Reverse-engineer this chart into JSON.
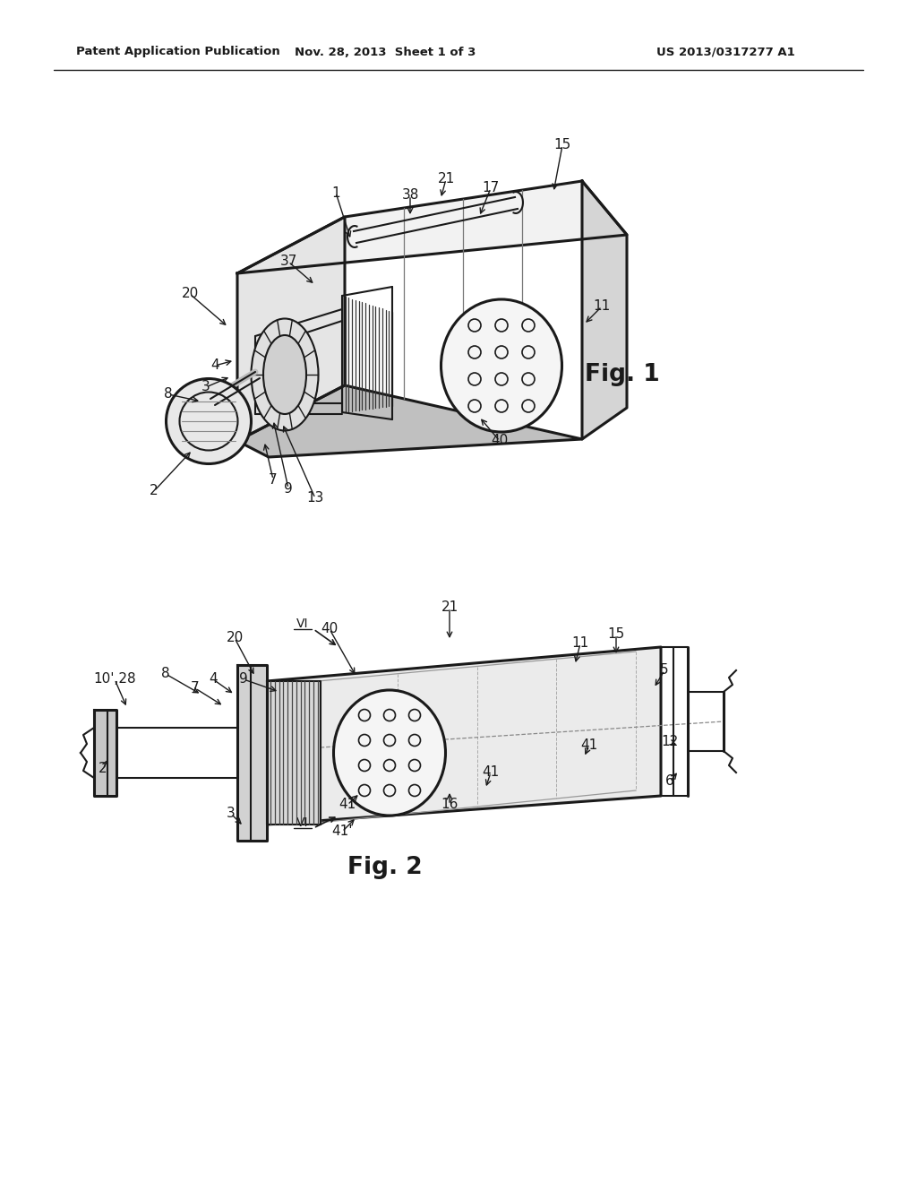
{
  "background_color": "#ffffff",
  "header_left": "Patent Application Publication",
  "header_center": "Nov. 28, 2013  Sheet 1 of 3",
  "header_right": "US 2013/0317277 A1",
  "fig1_label": "Fig. 1",
  "fig2_label": "Fig. 2"
}
